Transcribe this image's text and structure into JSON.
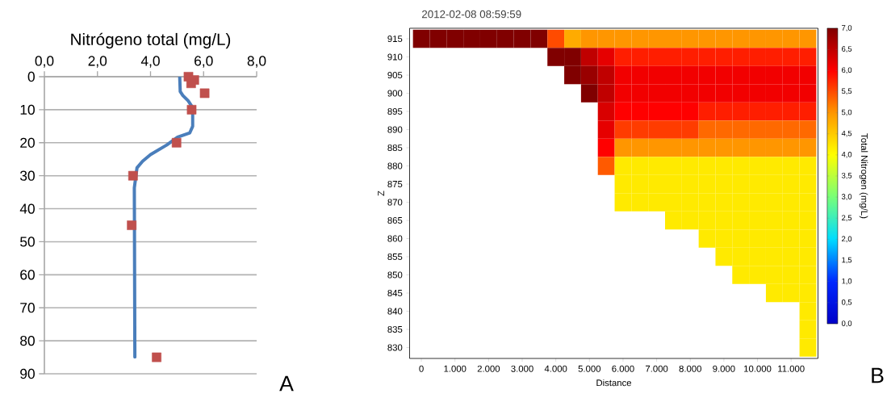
{
  "chart_data": [
    {
      "type": "line",
      "xlabel": "Nitrógeno total (mg/L)",
      "xlim": [
        0,
        8
      ],
      "xticks": [
        {
          "value": 0,
          "label": "0,0"
        },
        {
          "value": 2,
          "label": "2,0"
        },
        {
          "value": 4,
          "label": "4,0"
        },
        {
          "value": 6,
          "label": "6,0"
        },
        {
          "value": 8,
          "label": "8,0"
        }
      ],
      "ylim": [
        90,
        0
      ],
      "yticks": [
        0,
        10,
        20,
        30,
        40,
        50,
        60,
        70,
        80,
        90
      ],
      "grid": "y",
      "annotations": [
        "A"
      ],
      "series": [
        {
          "type": "line",
          "color": "#4a7ebb",
          "marker": "none",
          "x": [
            5.1,
            5.12,
            5.22,
            5.42,
            5.56,
            5.59,
            5.59,
            5.48,
            5.02,
            4.61,
            4.0,
            3.7,
            3.49,
            3.39,
            3.41
          ],
          "values": [
            0,
            4.5,
            5.7,
            7.3,
            9,
            11,
            15,
            17,
            18.3,
            20.7,
            23.6,
            25.6,
            27.6,
            33.7,
            84.9
          ]
        },
        {
          "type": "scatter",
          "color": "#c0504d",
          "marker": "square",
          "x": [
            5.43,
            5.65,
            5.53,
            6.04,
            5.55,
            4.98,
            3.34,
            3.29,
            4.23
          ],
          "values": [
            0,
            1,
            2,
            5,
            10,
            20,
            30,
            45,
            85
          ]
        }
      ]
    },
    {
      "type": "heatmap",
      "title": "2012-02-08 08:59:59",
      "xlabel": "Distance",
      "ylabel": "Z",
      "clabel": "Total Nitrogen (mg/L)",
      "annotations": [
        "B"
      ],
      "categories": [
        "0",
        null,
        "1.000",
        null,
        "2.000",
        null,
        "3.000",
        null,
        "4.000",
        null,
        "5.000",
        null,
        "6.000",
        null,
        "7.000",
        null,
        "8.000",
        null,
        "9.000",
        null,
        "10.000",
        null,
        "11.000",
        null
      ],
      "y_categories": [
        "915",
        "910",
        "905",
        "900",
        "895",
        "890",
        "885",
        "880",
        "875",
        "870",
        "865",
        "860",
        "855",
        "850",
        "845",
        "840",
        "835",
        "830"
      ],
      "cells": [
        [
          7.0,
          7.0,
          7.0,
          7.0,
          7.0,
          7.0,
          7.0,
          7.0,
          5.5,
          4.8,
          5.0,
          5.0,
          5.0,
          5.0,
          5.0,
          5.0,
          5.0,
          5.0,
          5.0,
          5.0,
          5.0,
          5.0,
          5.0,
          5.0
        ],
        [
          null,
          null,
          null,
          null,
          null,
          null,
          null,
          null,
          7.0,
          7.0,
          6.5,
          6.2,
          5.8,
          5.8,
          5.8,
          5.8,
          5.8,
          5.8,
          5.8,
          5.8,
          5.8,
          5.8,
          5.8,
          5.8
        ],
        [
          null,
          null,
          null,
          null,
          null,
          null,
          null,
          null,
          null,
          7.0,
          6.8,
          6.5,
          6.1,
          6.1,
          6.1,
          6.1,
          6.1,
          6.1,
          6.1,
          6.1,
          6.1,
          6.1,
          6.1,
          6.1
        ],
        [
          null,
          null,
          null,
          null,
          null,
          null,
          null,
          null,
          null,
          null,
          7.0,
          6.5,
          6.1,
          6.1,
          6.1,
          6.1,
          6.1,
          6.1,
          6.1,
          6.1,
          6.1,
          6.1,
          6.1,
          6.1
        ],
        [
          null,
          null,
          null,
          null,
          null,
          null,
          null,
          null,
          null,
          null,
          null,
          6.3,
          6.0,
          6.0,
          6.0,
          6.0,
          6.0,
          5.8,
          5.8,
          5.8,
          5.8,
          5.8,
          5.8,
          5.8
        ],
        [
          null,
          null,
          null,
          null,
          null,
          null,
          null,
          null,
          null,
          null,
          null,
          6.2,
          5.6,
          5.6,
          5.6,
          5.6,
          5.6,
          5.3,
          5.3,
          5.3,
          5.3,
          5.3,
          5.3,
          5.3
        ],
        [
          null,
          null,
          null,
          null,
          null,
          null,
          null,
          null,
          null,
          null,
          null,
          6.0,
          5.0,
          5.0,
          5.0,
          5.0,
          5.0,
          5.0,
          5.0,
          5.0,
          5.0,
          5.0,
          5.0,
          5.0
        ],
        [
          null,
          null,
          null,
          null,
          null,
          null,
          null,
          null,
          null,
          null,
          null,
          5.4,
          4.2,
          4.2,
          4.2,
          4.2,
          4.2,
          4.2,
          4.2,
          4.2,
          4.2,
          4.2,
          4.2,
          4.2
        ],
        [
          null,
          null,
          null,
          null,
          null,
          null,
          null,
          null,
          null,
          null,
          null,
          null,
          4.2,
          4.2,
          4.2,
          4.2,
          4.2,
          4.2,
          4.2,
          4.2,
          4.2,
          4.2,
          4.2,
          4.2
        ],
        [
          null,
          null,
          null,
          null,
          null,
          null,
          null,
          null,
          null,
          null,
          null,
          null,
          4.2,
          4.2,
          4.2,
          4.2,
          4.2,
          4.2,
          4.2,
          4.2,
          4.2,
          4.2,
          4.2,
          4.2
        ],
        [
          null,
          null,
          null,
          null,
          null,
          null,
          null,
          null,
          null,
          null,
          null,
          null,
          null,
          null,
          null,
          4.2,
          4.2,
          4.2,
          4.2,
          4.2,
          4.2,
          4.2,
          4.2,
          4.2
        ],
        [
          null,
          null,
          null,
          null,
          null,
          null,
          null,
          null,
          null,
          null,
          null,
          null,
          null,
          null,
          null,
          null,
          null,
          4.2,
          4.2,
          4.2,
          4.2,
          4.2,
          4.2,
          4.2
        ],
        [
          null,
          null,
          null,
          null,
          null,
          null,
          null,
          null,
          null,
          null,
          null,
          null,
          null,
          null,
          null,
          null,
          null,
          null,
          4.2,
          4.2,
          4.2,
          4.2,
          4.2,
          4.2
        ],
        [
          null,
          null,
          null,
          null,
          null,
          null,
          null,
          null,
          null,
          null,
          null,
          null,
          null,
          null,
          null,
          null,
          null,
          null,
          null,
          4.2,
          4.2,
          4.2,
          4.2,
          4.2
        ],
        [
          null,
          null,
          null,
          null,
          null,
          null,
          null,
          null,
          null,
          null,
          null,
          null,
          null,
          null,
          null,
          null,
          null,
          null,
          null,
          null,
          null,
          4.2,
          4.2,
          4.2
        ],
        [
          null,
          null,
          null,
          null,
          null,
          null,
          null,
          null,
          null,
          null,
          null,
          null,
          null,
          null,
          null,
          null,
          null,
          null,
          null,
          null,
          null,
          null,
          null,
          4.2
        ],
        [
          null,
          null,
          null,
          null,
          null,
          null,
          null,
          null,
          null,
          null,
          null,
          null,
          null,
          null,
          null,
          null,
          null,
          null,
          null,
          null,
          null,
          null,
          null,
          4.2
        ],
        [
          null,
          null,
          null,
          null,
          null,
          null,
          null,
          null,
          null,
          null,
          null,
          null,
          null,
          null,
          null,
          null,
          null,
          null,
          null,
          null,
          null,
          null,
          null,
          4.2
        ]
      ],
      "clim": [
        0,
        7
      ],
      "cticks": [
        {
          "value": 0,
          "label": "0,0"
        },
        {
          "value": 0.5,
          "label": "0,5"
        },
        {
          "value": 1,
          "label": "1,0"
        },
        {
          "value": 1.5,
          "label": "1,5"
        },
        {
          "value": 2,
          "label": "2,0"
        },
        {
          "value": 2.5,
          "label": "2,5"
        },
        {
          "value": 3,
          "label": "3,0"
        },
        {
          "value": 3.5,
          "label": "3,5"
        },
        {
          "value": 4,
          "label": "4,0"
        },
        {
          "value": 4.5,
          "label": "4,5"
        },
        {
          "value": 5,
          "label": "5,0"
        },
        {
          "value": 5.5,
          "label": "5,5"
        },
        {
          "value": 6,
          "label": "6,0"
        },
        {
          "value": 6.5,
          "label": "6,5"
        },
        {
          "value": 7,
          "label": "7,0"
        }
      ]
    }
  ]
}
